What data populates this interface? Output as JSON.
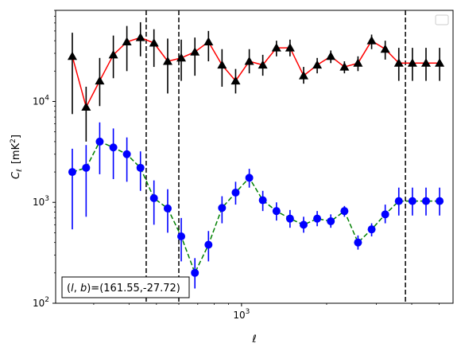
{
  "chart_data": {
    "type": "line",
    "xlabel": "ℓ",
    "ylabel_main": "C",
    "ylabel_sub": "ℓ",
    "ylabel_unit_prefix": "[mK",
    "ylabel_unit_sup": "2",
    "ylabel_unit_suffix": "]",
    "xscale": "log",
    "yscale": "log",
    "xlim": [
      220,
      5600
    ],
    "ylim": [
      100,
      80000
    ],
    "x_ticks_major": [
      {
        "value": 1000,
        "base": "10",
        "exp": "3"
      }
    ],
    "x_ticks_minor": [
      300,
      400,
      500,
      600,
      700,
      800,
      900,
      2000,
      3000,
      4000,
      5000
    ],
    "y_ticks_major": [
      {
        "value": 100,
        "base": "10",
        "exp": "2"
      },
      {
        "value": 1000,
        "base": "10",
        "exp": "3"
      },
      {
        "value": 10000,
        "base": "10",
        "exp": "4"
      }
    ],
    "vlines": [
      460,
      600,
      3800
    ],
    "annotation": "(l, b)=(161.55,-27.72)",
    "annotation_parts": {
      "open": "(",
      "l": "l",
      "comma": ", ",
      "b": "b",
      "rest": ")=(161.55,-27.72)"
    },
    "legend": "upper right",
    "series": [
      {
        "line_color": "#ff0000",
        "marker_color": "#000000",
        "errorbar_color": "#000000",
        "marker": "triangle",
        "linestyle": "solid",
        "x": [
          252,
          282,
          315,
          352,
          393,
          439,
          490,
          548,
          612,
          684,
          764,
          853,
          953,
          1065,
          1189,
          1329,
          1484,
          1658,
          1852,
          2069,
          2312,
          2582,
          2885,
          3223,
          3600,
          4022,
          4493,
          5019
        ],
        "y": [
          28000,
          8800,
          16000,
          29000,
          39000,
          43000,
          38000,
          25000,
          27000,
          31000,
          39000,
          23000,
          16000,
          25000,
          23000,
          34000,
          34000,
          18000,
          23000,
          28000,
          22000,
          24000,
          40000,
          33000,
          24000,
          24000,
          24000,
          24000
        ],
        "yerr_low": [
          7500,
          4000,
          9000,
          17000,
          20000,
          28000,
          22000,
          12000,
          16000,
          18000,
          25000,
          14000,
          12000,
          19000,
          18000,
          28000,
          28000,
          15000,
          19000,
          24000,
          19000,
          20000,
          33000,
          26000,
          16000,
          16000,
          16000,
          16000
        ],
        "yerr_high": [
          48000,
          14000,
          27000,
          45000,
          56000,
          61000,
          52000,
          42000,
          41000,
          43000,
          50000,
          33000,
          21000,
          33000,
          29000,
          40000,
          41000,
          22000,
          27000,
          32000,
          25000,
          28000,
          46000,
          40000,
          34000,
          34000,
          34000,
          34000
        ]
      },
      {
        "line_color": "#008000",
        "marker_color": "#0000ff",
        "errorbar_color": "#0000ff",
        "marker": "circle",
        "linestyle": "dashed",
        "x": [
          252,
          282,
          315,
          352,
          393,
          439,
          490,
          548,
          612,
          684,
          764,
          853,
          953,
          1065,
          1189,
          1329,
          1484,
          1658,
          1852,
          2069,
          2312,
          2582,
          2885,
          3223,
          3600,
          4022,
          4493,
          5019
        ],
        "y": [
          2000,
          2200,
          4000,
          3500,
          3000,
          2200,
          1100,
          870,
          460,
          200,
          380,
          880,
          1250,
          1750,
          1050,
          820,
          690,
          600,
          690,
          650,
          820,
          400,
          540,
          760,
          1030,
          1030,
          1030,
          1030
        ],
        "yerr_low": [
          540,
          720,
          1900,
          1700,
          1600,
          1300,
          600,
          500,
          260,
          140,
          260,
          620,
          950,
          1400,
          820,
          660,
          560,
          500,
          580,
          560,
          720,
          340,
          460,
          620,
          740,
          740,
          740,
          740
        ],
        "yerr_high": [
          3400,
          3700,
          6200,
          5400,
          4400,
          3200,
          1650,
          1350,
          700,
          280,
          520,
          1150,
          1600,
          2150,
          1300,
          1000,
          840,
          720,
          820,
          760,
          920,
          470,
          620,
          950,
          1400,
          1400,
          1400,
          1400
        ]
      }
    ]
  }
}
